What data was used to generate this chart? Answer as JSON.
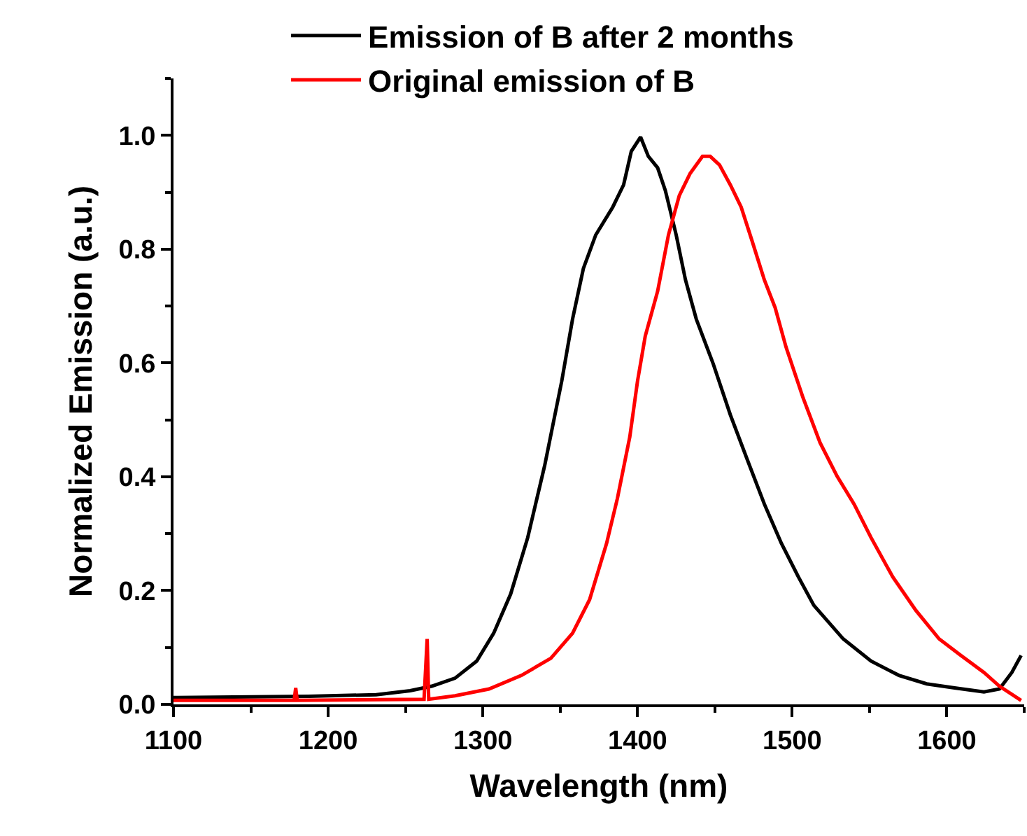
{
  "chart_data": {
    "type": "line",
    "xlabel": "Wavelength (nm)",
    "ylabel": "Normalized Emission (a.u.)",
    "xlim": [
      1100,
      1650
    ],
    "ylim": [
      0,
      1.1
    ],
    "xticks": [
      1100,
      1200,
      1300,
      1400,
      1500,
      1600
    ],
    "yticks": [
      {
        "value": 0,
        "label": "0.0"
      },
      {
        "value": 0.2,
        "label": "0.2"
      },
      {
        "value": 0.4,
        "label": "0.4"
      },
      {
        "value": 0.6,
        "label": "0.6"
      },
      {
        "value": 0.8,
        "label": "0.8"
      },
      {
        "value": 1,
        "label": "1.0"
      }
    ],
    "grid": false,
    "legend": "top",
    "marker": "none",
    "line_style": "solid",
    "series": [
      {
        "name": "Emission of B after 2 months",
        "color": "#000000",
        "x": [
          1100,
          1187,
          1231,
          1253,
          1267,
          1282,
          1296,
          1307,
          1318,
          1329,
          1340,
          1351,
          1358,
          1365,
          1373,
          1384,
          1391,
          1396,
          1402,
          1407,
          1413,
          1418,
          1425,
          1431,
          1438,
          1449,
          1460,
          1471,
          1482,
          1493,
          1504,
          1514,
          1533,
          1551,
          1569,
          1587,
          1605,
          1624,
          1634,
          1642,
          1648
        ],
        "values": [
          0.012,
          0.014,
          0.017,
          0.024,
          0.032,
          0.046,
          0.076,
          0.125,
          0.194,
          0.293,
          0.42,
          0.568,
          0.677,
          0.766,
          0.825,
          0.874,
          0.913,
          0.972,
          0.997,
          0.963,
          0.943,
          0.903,
          0.825,
          0.746,
          0.677,
          0.598,
          0.509,
          0.43,
          0.352,
          0.283,
          0.224,
          0.174,
          0.115,
          0.076,
          0.051,
          0.036,
          0.029,
          0.022,
          0.027,
          0.056,
          0.086
        ]
      },
      {
        "name": "Original emission of B",
        "color": "#ff0000",
        "x": [
          1100,
          1178,
          1179,
          1180,
          1262,
          1264,
          1265,
          1282,
          1304,
          1325,
          1344,
          1358,
          1369,
          1380,
          1387,
          1395,
          1400,
          1405,
          1413,
          1420,
          1427,
          1434,
          1442,
          1447,
          1453,
          1460,
          1467,
          1474,
          1482,
          1489,
          1496,
          1507,
          1518,
          1529,
          1540,
          1551,
          1565,
          1580,
          1595,
          1609,
          1624,
          1634,
          1648
        ],
        "values": [
          0.007,
          0.007,
          0.029,
          0.007,
          0.009,
          0.115,
          0.009,
          0.015,
          0.027,
          0.051,
          0.081,
          0.125,
          0.184,
          0.283,
          0.362,
          0.47,
          0.568,
          0.647,
          0.726,
          0.825,
          0.894,
          0.933,
          0.963,
          0.963,
          0.948,
          0.913,
          0.874,
          0.815,
          0.746,
          0.697,
          0.628,
          0.539,
          0.46,
          0.401,
          0.352,
          0.293,
          0.224,
          0.165,
          0.115,
          0.086,
          0.056,
          0.032,
          0.007
        ]
      }
    ]
  }
}
